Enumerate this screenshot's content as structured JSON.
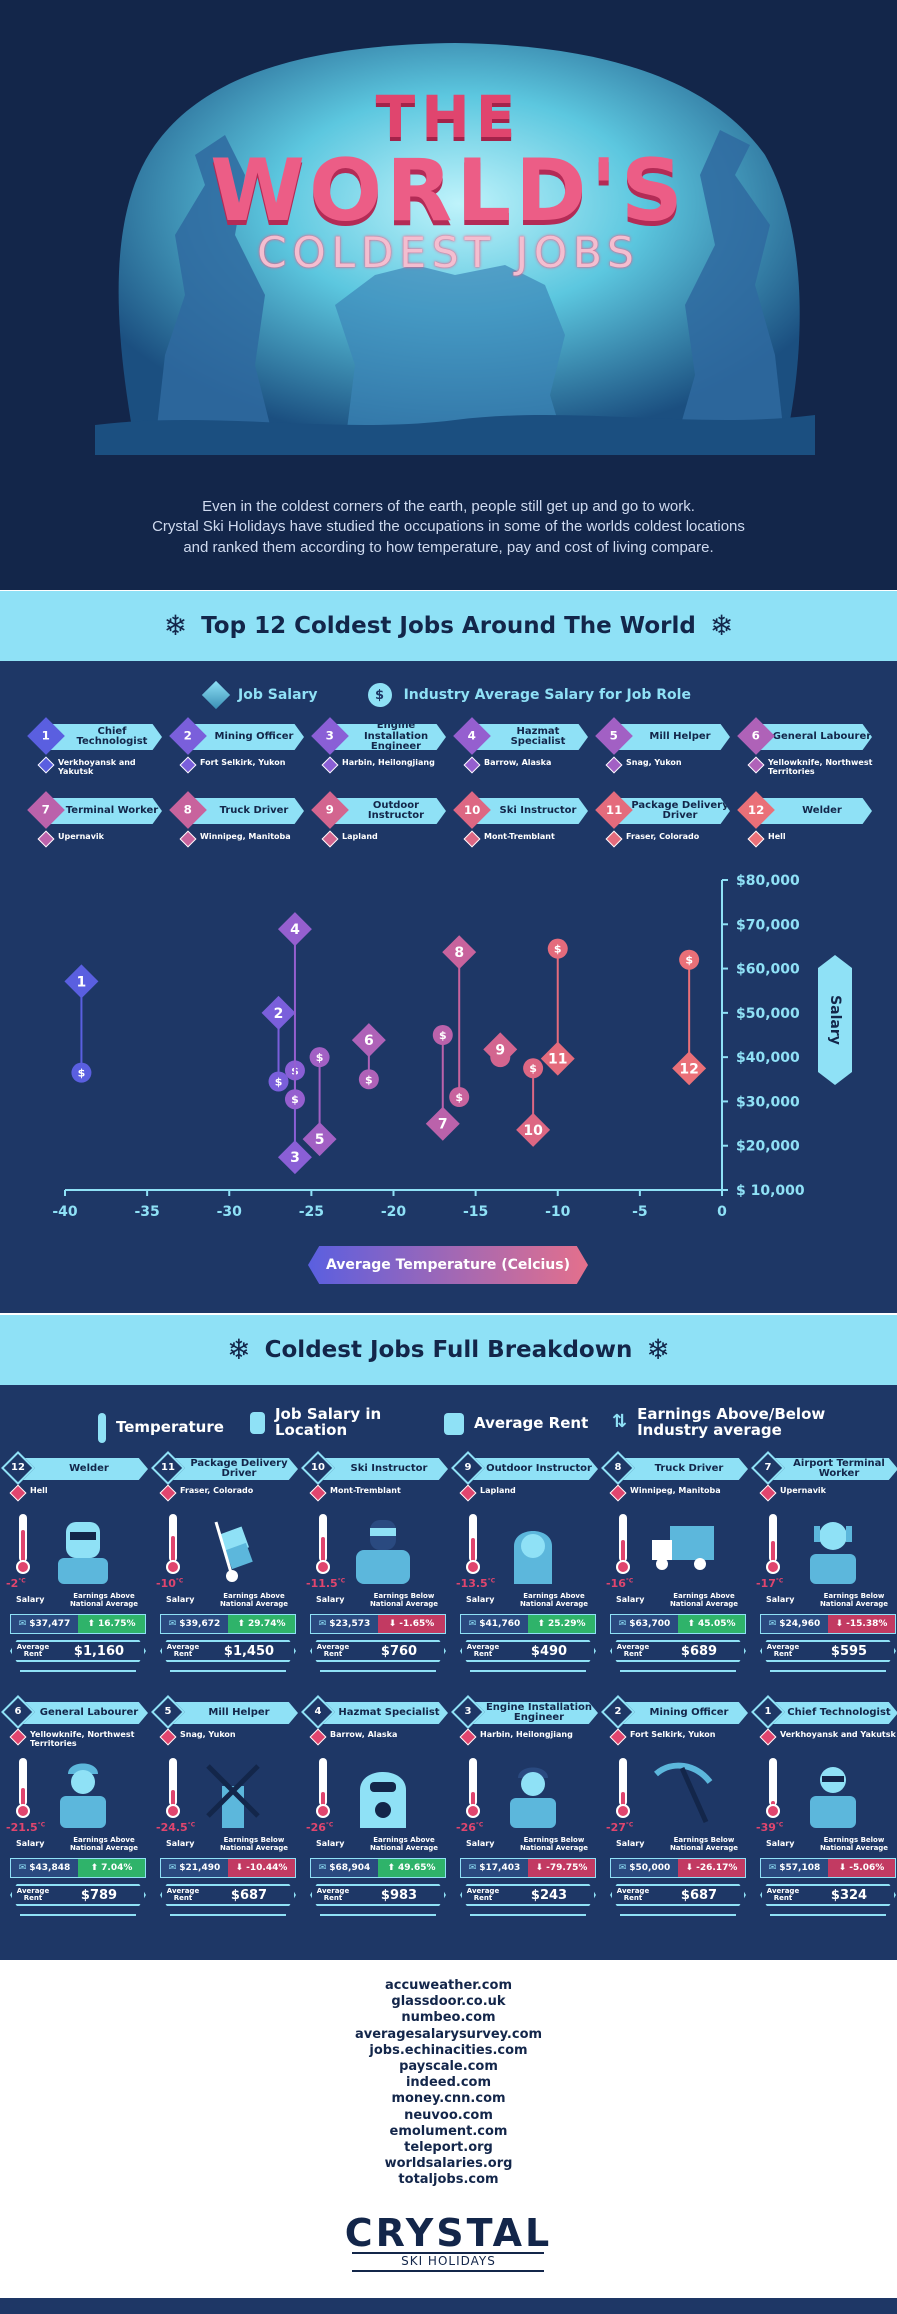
{
  "title": {
    "line1": "THE",
    "line2": "WORLD'S",
    "line3": "COLDEST JOBS"
  },
  "intro": [
    "Even in the coldest corners of the earth, people still get up and go to work.",
    "Crystal Ski Holidays have studied the occupations in some of the worlds coldest locations",
    "and ranked them according to how temperature, pay and cost of living compare."
  ],
  "section1_title": "Top 12 Coldest Jobs Around The World",
  "legend": {
    "job_salary": "Job Salary",
    "industry_salary": "Industry Average Salary for Job Role"
  },
  "colors": {
    "navy": "#13264a",
    "panel": "#1e3766",
    "ice": "#8fe1f6",
    "pink": "#e0456e",
    "purple": "#6a5fe0"
  },
  "jobs": [
    {
      "rank": "1",
      "title": "Chief Technologist",
      "location": "Verkhoyansk and Yakutsk",
      "color": "#5a5fe0"
    },
    {
      "rank": "2",
      "title": "Mining Officer",
      "location": "Fort Selkirk, Yukon",
      "color": "#7a5fdb"
    },
    {
      "rank": "3",
      "title": "Engine Installation Engineer",
      "location": "Harbin, Heilongjiang",
      "color": "#8a5fd6"
    },
    {
      "rank": "4",
      "title": "Hazmat Specialist",
      "location": "Barrow, Alaska",
      "color": "#955fcf"
    },
    {
      "rank": "5",
      "title": "Mill Helper",
      "location": "Snag, Yukon",
      "color": "#a260c4"
    },
    {
      "rank": "6",
      "title": "General Labourer",
      "location": "Yellowknife, Northwest Territories",
      "color": "#af62b8"
    },
    {
      "rank": "7",
      "title": "Terminal Worker",
      "location": "Upernavik",
      "color": "#bb62ab"
    },
    {
      "rank": "8",
      "title": "Truck Driver",
      "location": "Winnipeg, Manitoba",
      "color": "#c8639d"
    },
    {
      "rank": "9",
      "title": "Outdoor Instructor",
      "location": "Lapland",
      "color": "#d3658f"
    },
    {
      "rank": "10",
      "title": "Ski Instructor",
      "location": "Mont-Tremblant",
      "color": "#dd6783"
    },
    {
      "rank": "11",
      "title": "Package Delivery Driver",
      "location": "Fraser, Colorado",
      "color": "#e46b7c"
    },
    {
      "rank": "12",
      "title": "Welder",
      "location": "Hell",
      "color": "#ea7078"
    }
  ],
  "chart_data": {
    "type": "scatter",
    "xlabel": "Average Temperature (Celcius)",
    "ylabel": "Salary",
    "xlim": [
      -40,
      0
    ],
    "ylim": [
      10000,
      80000
    ],
    "x_ticks": [
      "-40",
      "-35",
      "-30",
      "-25",
      "-20",
      "-15",
      "-10",
      "-5",
      "0"
    ],
    "y_ticks": [
      "$ 10,000",
      "$20,000",
      "$30,000",
      "$40,000",
      "$50,000",
      "$60,000",
      "$70,000",
      "$80,000"
    ],
    "points": [
      {
        "rank": "1",
        "temp": -39,
        "salary": 57108,
        "industry": 36500
      },
      {
        "rank": "2",
        "temp": -27,
        "salary": 50000,
        "industry": 34500
      },
      {
        "rank": "3",
        "temp": -26,
        "salary": 17403,
        "industry": 37000
      },
      {
        "rank": "4",
        "temp": -26,
        "salary": 68904,
        "industry": 30500
      },
      {
        "rank": "5",
        "temp": -24.5,
        "salary": 21490,
        "industry": 40000
      },
      {
        "rank": "6",
        "temp": -21.5,
        "salary": 43848,
        "industry": 35000
      },
      {
        "rank": "7",
        "temp": -17,
        "salary": 24960,
        "industry": 45000
      },
      {
        "rank": "8",
        "temp": -16,
        "salary": 63700,
        "industry": 31000
      },
      {
        "rank": "9",
        "temp": -13.5,
        "salary": 41760,
        "industry": 40000
      },
      {
        "rank": "10",
        "temp": -11.5,
        "salary": 23573,
        "industry": 37500
      },
      {
        "rank": "11",
        "temp": -10,
        "salary": 39672,
        "industry": 64500
      },
      {
        "rank": "12",
        "temp": -2,
        "salary": 37477,
        "industry": 62000
      }
    ]
  },
  "section2_title": "Coldest Jobs Full Breakdown",
  "breakdown_legend": {
    "temperature": "Temperature",
    "job_salary": "Job Salary in Location",
    "rent": "Average Rent",
    "earnings": "Earnings Above/Below Industry average"
  },
  "card_labels": {
    "salary": "Salary",
    "above": "Earnings Above National Average",
    "below": "Earnings Below National Average",
    "rent": "Average Rent"
  },
  "cards": [
    {
      "rank": "12",
      "title": "Welder",
      "location": "Hell",
      "temp": "-2",
      "salary": "$37,477",
      "diff": "16.75%",
      "above": true,
      "rent": "$1,160",
      "icon": "welder-icon"
    },
    {
      "rank": "11",
      "title": "Package Delivery Driver",
      "location": "Fraser, Colorado",
      "temp": "-10",
      "salary": "$39,672",
      "diff": "29.74%",
      "above": true,
      "rent": "$1,450",
      "icon": "hand-truck-icon"
    },
    {
      "rank": "10",
      "title": "Ski Instructor",
      "location": "Mont-Tremblant",
      "temp": "-11.5",
      "salary": "$23,573",
      "diff": "-1.65%",
      "above": false,
      "rent": "$760",
      "icon": "skier-icon"
    },
    {
      "rank": "9",
      "title": "Outdoor Instructor",
      "location": "Lapland",
      "temp": "-13.5",
      "salary": "$41,760",
      "diff": "25.29%",
      "above": true,
      "rent": "$490",
      "icon": "instructor-icon"
    },
    {
      "rank": "8",
      "title": "Truck Driver",
      "location": "Winnipeg, Manitoba",
      "temp": "-16",
      "salary": "$63,700",
      "diff": "45.05%",
      "above": true,
      "rent": "$689",
      "icon": "truck-icon"
    },
    {
      "rank": "7",
      "title": "Airport Terminal Worker",
      "location": "Upernavik",
      "temp": "-17",
      "salary": "$24,960",
      "diff": "-15.38%",
      "above": false,
      "rent": "$595",
      "icon": "terminal-worker-icon"
    },
    {
      "rank": "6",
      "title": "General Labourer",
      "location": "Yellowknife, Northwest Territories",
      "temp": "-21.5",
      "salary": "$43,848",
      "diff": "7.04%",
      "above": true,
      "rent": "$789",
      "icon": "labourer-icon"
    },
    {
      "rank": "5",
      "title": "Mill Helper",
      "location": "Snag, Yukon",
      "temp": "-24.5",
      "salary": "$21,490",
      "diff": "-10.44%",
      "above": false,
      "rent": "$687",
      "icon": "windmill-icon"
    },
    {
      "rank": "4",
      "title": "Hazmat Specialist",
      "location": "Barrow, Alaska",
      "temp": "-26",
      "salary": "$68,904",
      "diff": "49.65%",
      "above": true,
      "rent": "$983",
      "icon": "hazmat-icon"
    },
    {
      "rank": "3",
      "title": "Engine Installation Engineer",
      "location": "Harbin, Heilongjiang",
      "temp": "-26",
      "salary": "$17,403",
      "diff": "-79.75%",
      "above": false,
      "rent": "$243",
      "icon": "engineer-icon"
    },
    {
      "rank": "2",
      "title": "Mining Officer",
      "location": "Fort Selkirk, Yukon",
      "temp": "-27",
      "salary": "$50,000",
      "diff": "-26.17%",
      "above": false,
      "rent": "$687",
      "icon": "pickaxe-icon"
    },
    {
      "rank": "1",
      "title": "Chief Technologist",
      "location": "Verkhoyansk and Yakutsk",
      "temp": "-39",
      "salary": "$57,108",
      "diff": "-5.06%",
      "above": false,
      "rent": "$324",
      "icon": "technologist-icon"
    }
  ],
  "sources": [
    "accuweather.com",
    "glassdoor.co.uk",
    "numbeo.com",
    "averagesalarysurvey.com",
    "jobs.echinacities.com",
    "payscale.com",
    "indeed.com",
    "money.cnn.com",
    "neuvoo.com",
    "emolument.com",
    "teleport.org",
    "worldsalaries.org",
    "totaljobs.com"
  ],
  "brand": {
    "name": "CRYSTAL",
    "tagline": "SKI HOLIDAYS"
  }
}
